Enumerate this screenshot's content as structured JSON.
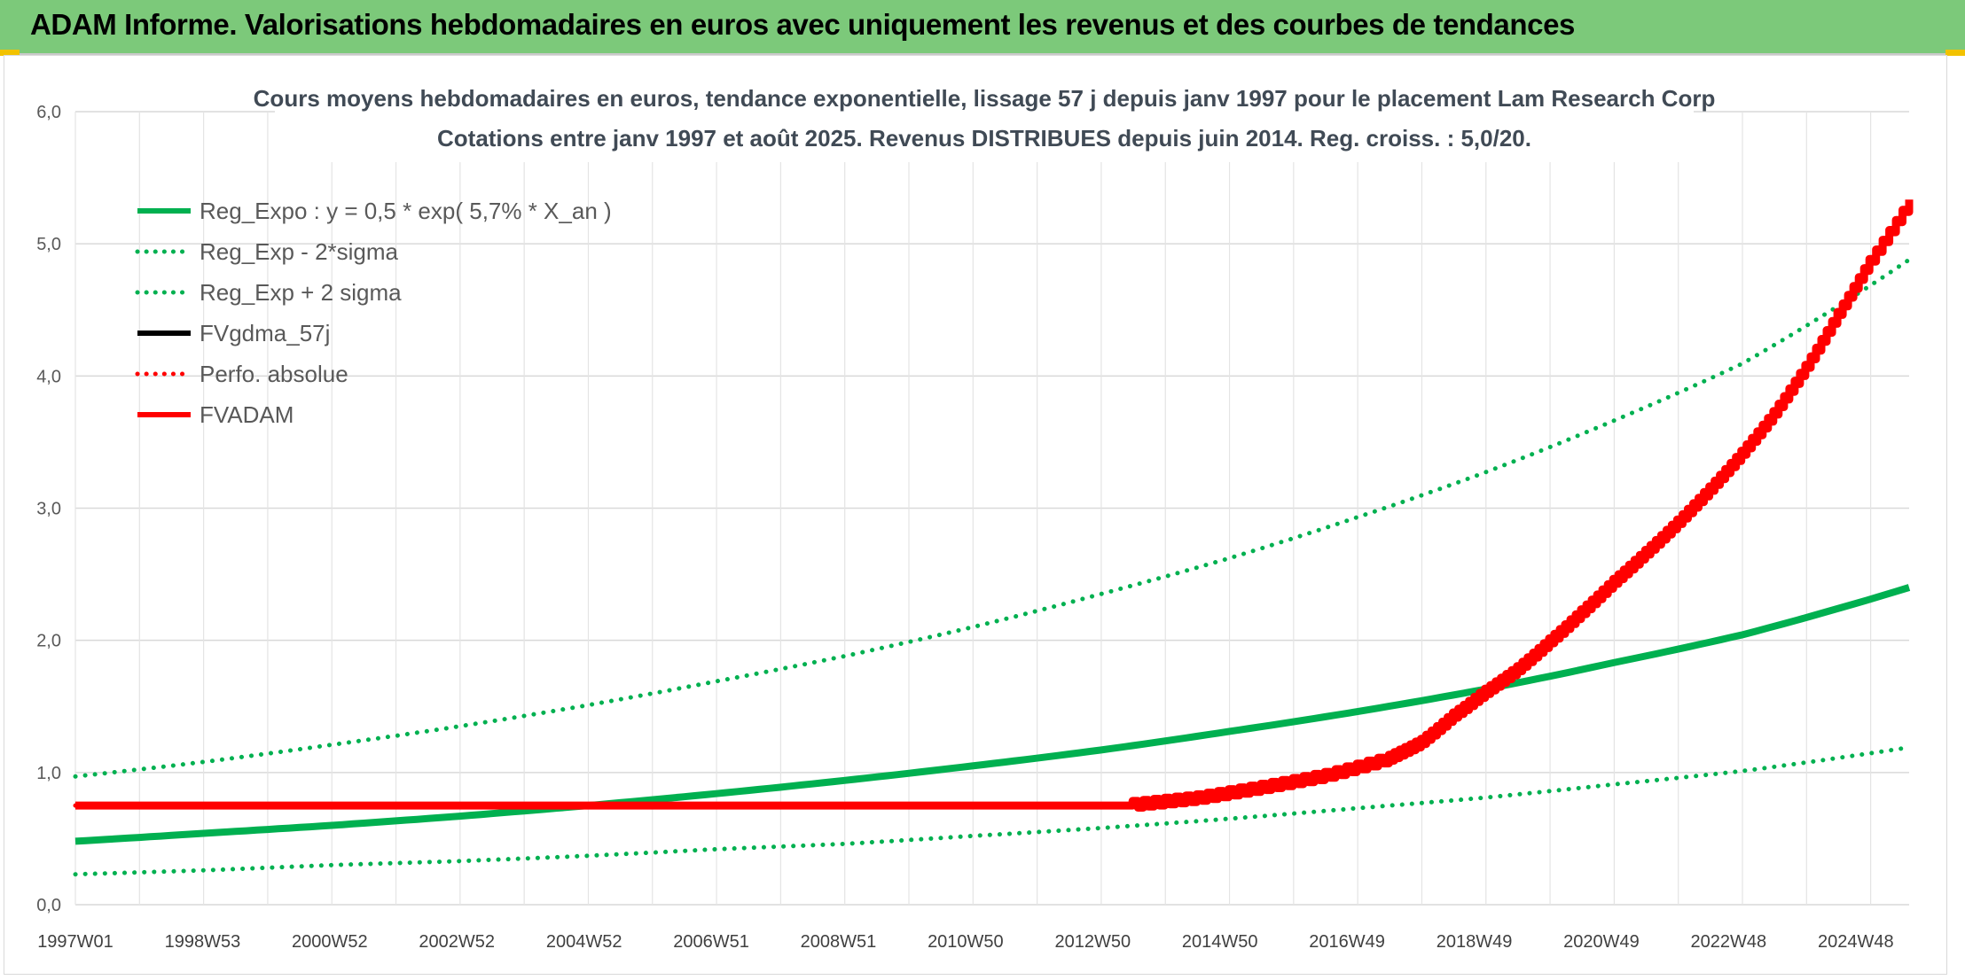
{
  "header": {
    "title": "ADAM Informe. Valorisations hebdomadaires en euros avec uniquement les revenus et des courbes de tendances"
  },
  "colors": {
    "header_bg": "#7cc97a",
    "green_series": "#00b050",
    "red_series": "#ff0000",
    "black_series": "#000000",
    "grid": "#d9d9d9",
    "accent_corner": "#f2c200"
  },
  "chart_data": {
    "type": "line",
    "title": "Cours moyens hebdomadaires en euros, tendance exponentielle, lissage 57 j depuis janv 1997 pour le placement Lam Research Corp",
    "subtitle": "Cotations entre janv 1997 et août 2025. Revenus DISTRIBUES depuis juin 2014. Reg. croiss. : 5,0/20.",
    "xlabel": "",
    "ylabel": "",
    "xlim": [
      1997.0,
      2025.62
    ],
    "ylim": [
      0,
      6
    ],
    "y_ticks": [
      "0,0",
      "1,0",
      "2,0",
      "3,0",
      "4,0",
      "5,0",
      "6,0"
    ],
    "x_ticks": [
      "1997W01",
      "1998W53",
      "2000W52",
      "2002W52",
      "2004W52",
      "2006W51",
      "2008W51",
      "2010W50",
      "2012W50",
      "2014W50",
      "2016W49",
      "2018W49",
      "2020W49",
      "2022W48",
      "2024W48"
    ],
    "grid": true,
    "legend_position": "top-left",
    "series": [
      {
        "name": "Reg_Expo : y = 0,5 * exp( 5,7% *  X_an )",
        "style": "solid-thick",
        "color": "#00b050",
        "x": [
          1997,
          1999,
          2001,
          2003,
          2005,
          2007,
          2009,
          2011,
          2013,
          2015,
          2017,
          2019,
          2021,
          2023,
          2025.62
        ],
        "y": [
          0.48,
          0.54,
          0.6,
          0.67,
          0.75,
          0.84,
          0.94,
          1.05,
          1.17,
          1.31,
          1.46,
          1.63,
          1.83,
          2.04,
          2.4
        ]
      },
      {
        "name": "Reg_Exp - 2*sigma",
        "style": "dotted",
        "color": "#00b050",
        "x": [
          1997,
          1999,
          2001,
          2003,
          2005,
          2007,
          2009,
          2011,
          2013,
          2015,
          2017,
          2019,
          2021,
          2023,
          2025.62
        ],
        "y": [
          0.23,
          0.26,
          0.3,
          0.33,
          0.37,
          0.42,
          0.46,
          0.52,
          0.58,
          0.65,
          0.73,
          0.81,
          0.91,
          1.01,
          1.19
        ]
      },
      {
        "name": "Reg_Exp + 2 sigma",
        "style": "dotted",
        "color": "#00b050",
        "x": [
          1997,
          1999,
          2001,
          2003,
          2005,
          2007,
          2009,
          2011,
          2013,
          2015,
          2017,
          2019,
          2021,
          2023,
          2025.62
        ],
        "y": [
          0.97,
          1.08,
          1.21,
          1.35,
          1.51,
          1.69,
          1.88,
          2.1,
          2.35,
          2.62,
          2.93,
          3.27,
          3.66,
          4.09,
          4.88
        ]
      },
      {
        "name": "FVgdma_57j",
        "style": "solid",
        "color": "#000000",
        "x": [
          1997,
          2013.5,
          2014.5,
          2015.5,
          2016.5,
          2017.5,
          2018.0,
          2018.5,
          2019.0,
          2019.5,
          2020.0,
          2020.5,
          2021.0,
          2021.5,
          2022.0,
          2022.5,
          2023.0,
          2023.5,
          2024.0,
          2024.5,
          2025.0,
          2025.62
        ],
        "y": [
          0.75,
          0.75,
          0.8,
          0.88,
          0.97,
          1.1,
          1.22,
          1.42,
          1.6,
          1.77,
          1.98,
          2.2,
          2.43,
          2.65,
          2.88,
          3.13,
          3.4,
          3.7,
          4.05,
          4.45,
          4.85,
          5.28
        ]
      },
      {
        "name": "Perfo. absolue",
        "style": "dotted",
        "color": "#ff0000",
        "x": [
          1997,
          2013.5,
          2014.5,
          2015.5,
          2016.5,
          2017.5,
          2018.0,
          2018.5,
          2019.0,
          2019.5,
          2020.0,
          2020.5,
          2021.0,
          2021.5,
          2022.0,
          2022.5,
          2023.0,
          2023.5,
          2024.0,
          2024.5,
          2025.0,
          2025.62
        ],
        "y": [
          0.75,
          0.75,
          0.8,
          0.88,
          0.97,
          1.1,
          1.22,
          1.42,
          1.6,
          1.77,
          1.98,
          2.2,
          2.43,
          2.65,
          2.88,
          3.13,
          3.4,
          3.7,
          4.05,
          4.45,
          4.85,
          5.3
        ]
      },
      {
        "name": "FVADAM",
        "style": "solid-thick-stepped",
        "color": "#ff0000",
        "x": [
          1997,
          2013.5,
          2014.5,
          2015.5,
          2016.5,
          2017.5,
          2018.0,
          2018.5,
          2019.0,
          2019.5,
          2020.0,
          2020.5,
          2021.0,
          2021.5,
          2022.0,
          2022.5,
          2023.0,
          2023.5,
          2024.0,
          2024.5,
          2025.0,
          2025.62
        ],
        "y": [
          0.75,
          0.75,
          0.8,
          0.88,
          0.97,
          1.1,
          1.22,
          1.42,
          1.6,
          1.77,
          1.98,
          2.2,
          2.43,
          2.65,
          2.88,
          3.13,
          3.4,
          3.7,
          4.05,
          4.45,
          4.85,
          5.3
        ]
      }
    ]
  }
}
